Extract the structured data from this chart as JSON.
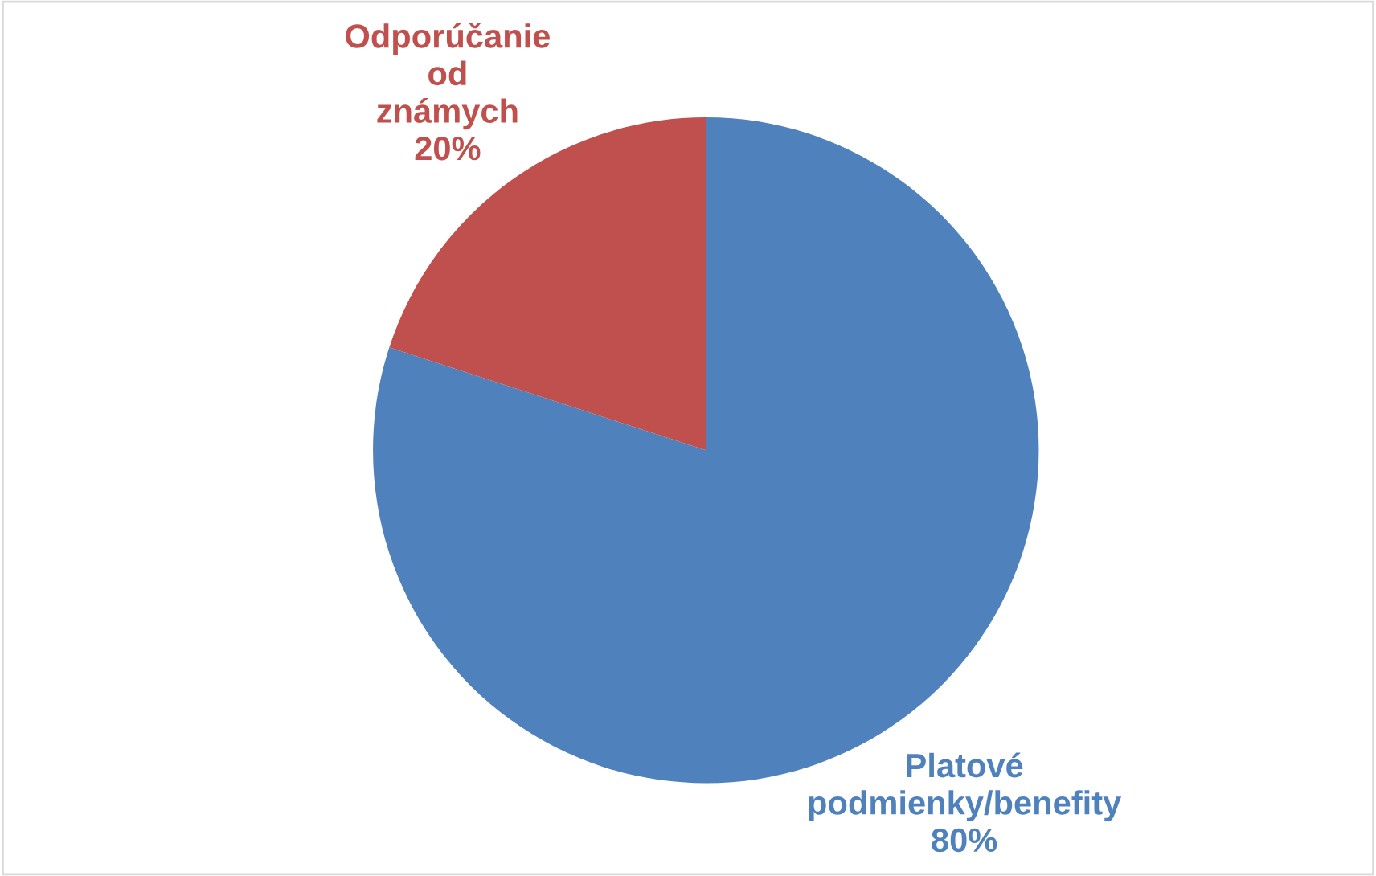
{
  "chart_data": {
    "type": "pie",
    "categories": [
      "Platové podmienky/benefity",
      "Odporúčanie od známych"
    ],
    "values": [
      80,
      20
    ],
    "value_labels": [
      "80%",
      "20%"
    ],
    "colors": [
      "#4f81bd",
      "#c0504d"
    ],
    "legend": false
  }
}
